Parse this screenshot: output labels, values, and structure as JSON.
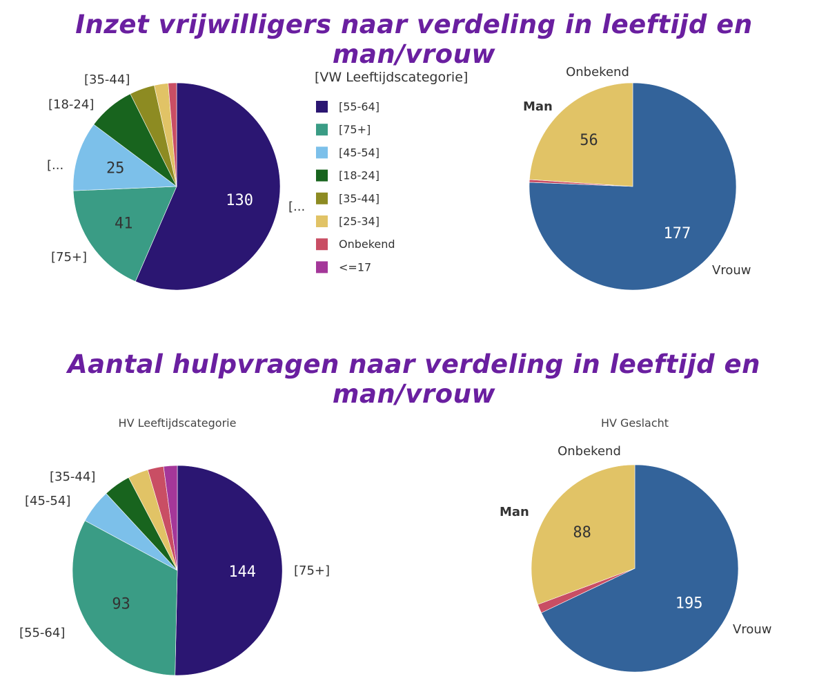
{
  "headings": {
    "top": "Inzet vrijwilligers naar verdeling in leeftijd en man/vrouw",
    "bottom": "Aantal hulpvragen naar verdeling in leeftijd en man/vrouw"
  },
  "chart_data": [
    {
      "type": "pie",
      "title": "",
      "legend": {
        "title": "[VW Leeftijdscategorie]",
        "placement": "right",
        "items": [
          {
            "name": "[55-64]",
            "color": "#2b1672"
          },
          {
            "name": "[75+]",
            "color": "#3a9c85"
          },
          {
            "name": "[45-54]",
            "color": "#7cc0ea"
          },
          {
            "name": "[18-24]",
            "color": "#18641e"
          },
          {
            "name": "[35-44]",
            "color": "#8d8b22"
          },
          {
            "name": "[25-34]",
            "color": "#e1c366"
          },
          {
            "name": "Onbekend",
            "color": "#c94e64"
          },
          {
            "name": "<=17",
            "color": "#a43799"
          }
        ]
      },
      "slices": [
        {
          "name": "[55-64]",
          "value": 130,
          "value_label": "130",
          "outer_label": "[...",
          "color": "#2b1672",
          "value_color": "#ffffff"
        },
        {
          "name": "[75+]",
          "value": 41,
          "value_label": "41",
          "outer_label": "[75+]",
          "color": "#3a9c85",
          "value_color": "#333333"
        },
        {
          "name": "[45-54]",
          "value": 25,
          "value_label": "25",
          "outer_label": "[...",
          "color": "#7cc0ea",
          "value_color": "#333333"
        },
        {
          "name": "[18-24]",
          "value": 17,
          "value_label": "",
          "outer_label": "[18-24]",
          "color": "#18641e",
          "value_color": "#333333"
        },
        {
          "name": "[35-44]",
          "value": 9,
          "value_label": "",
          "outer_label": "[35-44]",
          "color": "#8d8b22",
          "value_color": "#333333"
        },
        {
          "name": "[25-34]",
          "value": 5,
          "value_label": "",
          "outer_label": "",
          "color": "#e1c366",
          "value_color": "#333333"
        },
        {
          "name": "Onbekend",
          "value": 3,
          "value_label": "",
          "outer_label": "",
          "color": "#c94e64",
          "value_color": "#333333"
        }
      ]
    },
    {
      "type": "pie",
      "title": "",
      "slices": [
        {
          "name": "Vrouw",
          "value": 177,
          "value_label": "177",
          "outer_label": "Vrouw",
          "color": "#33639a",
          "value_color": "#ffffff"
        },
        {
          "name": "Onbekend",
          "value": 1,
          "value_label": "",
          "outer_label": "Onbekend",
          "color": "#c94e64",
          "value_color": "#333333"
        },
        {
          "name": "Man",
          "value": 56,
          "value_label": "56",
          "outer_label": "Man",
          "color": "#e1c366",
          "value_color": "#333333"
        }
      ]
    },
    {
      "type": "pie",
      "title": "HV Leeftijdscategorie",
      "slices": [
        {
          "name": "[75+]",
          "value": 144,
          "value_label": "144",
          "outer_label": "[75+]",
          "color": "#2b1672",
          "value_color": "#ffffff"
        },
        {
          "name": "[55-64]",
          "value": 93,
          "value_label": "93",
          "outer_label": "[55-64]",
          "color": "#3a9c85",
          "value_color": "#333333"
        },
        {
          "name": "[45-54]",
          "value": 15,
          "value_label": "",
          "outer_label": "[45-54]",
          "color": "#7cc0ea",
          "value_color": "#333333"
        },
        {
          "name": "[35-44]",
          "value": 12,
          "value_label": "",
          "outer_label": "[35-44]",
          "color": "#18641e",
          "value_color": "#333333"
        },
        {
          "name": "[25-34]",
          "value": 9,
          "value_label": "",
          "outer_label": "",
          "color": "#e1c366",
          "value_color": "#333333"
        },
        {
          "name": "Onbekend",
          "value": 7,
          "value_label": "",
          "outer_label": "",
          "color": "#c94e64",
          "value_color": "#333333"
        },
        {
          "name": "<=17",
          "value": 6,
          "value_label": "",
          "outer_label": "",
          "color": "#a43799",
          "value_color": "#333333"
        }
      ]
    },
    {
      "type": "pie",
      "title": "HV Geslacht",
      "slices": [
        {
          "name": "Vrouw",
          "value": 195,
          "value_label": "195",
          "outer_label": "Vrouw",
          "color": "#33639a",
          "value_color": "#ffffff"
        },
        {
          "name": "Onbekend",
          "value": 4,
          "value_label": "",
          "outer_label": "Onbekend",
          "color": "#c94e64",
          "value_color": "#333333"
        },
        {
          "name": "Man",
          "value": 88,
          "value_label": "88",
          "outer_label": "Man",
          "color": "#e1c366",
          "value_color": "#333333"
        }
      ]
    }
  ]
}
